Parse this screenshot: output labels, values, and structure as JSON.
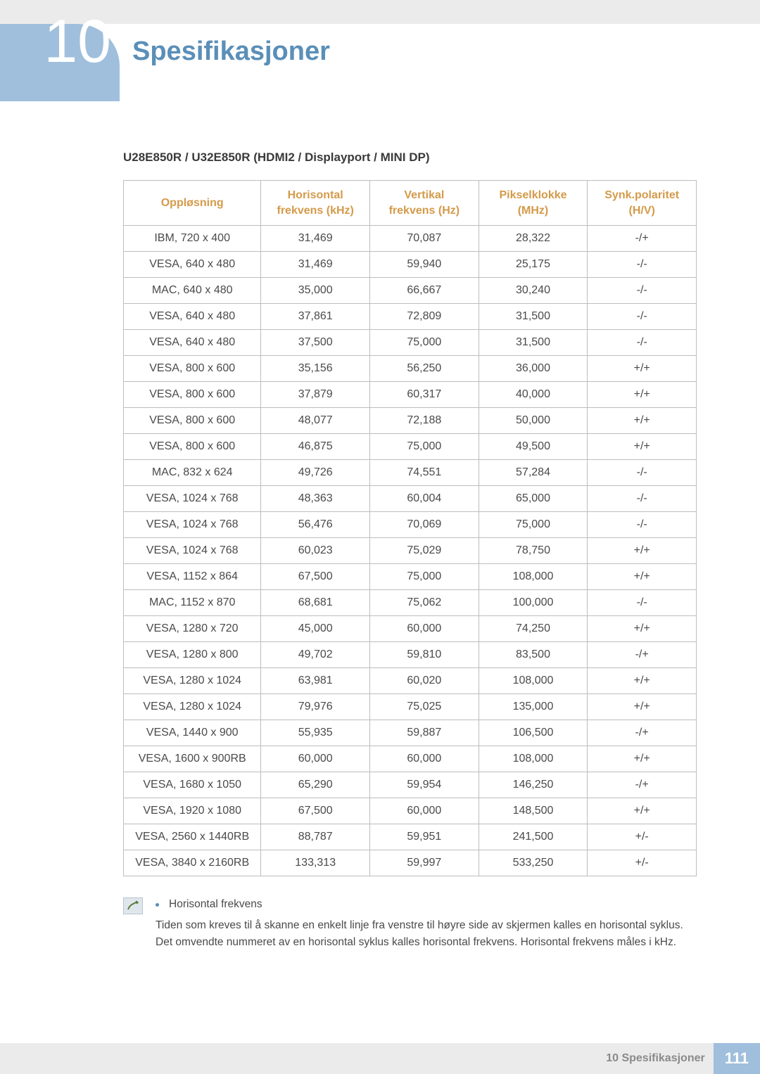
{
  "chapter": {
    "number": "10",
    "title": "Spesifikasjoner"
  },
  "section_heading": "U28E850R / U32E850R (HDMI2 / Displayport / MINI DP)",
  "table": {
    "columns": [
      {
        "line1": "Oppløsning",
        "line2": ""
      },
      {
        "line1": "Horisontal",
        "line2": "frekvens (kHz)"
      },
      {
        "line1": "Vertikal",
        "line2": "frekvens (Hz)"
      },
      {
        "line1": "Pikselklokke",
        "line2": "(MHz)"
      },
      {
        "line1": "Synk.polaritet",
        "line2": "(H/V)"
      }
    ],
    "rows": [
      [
        "IBM, 720 x 400",
        "31,469",
        "70,087",
        "28,322",
        "-/+"
      ],
      [
        "VESA, 640 x 480",
        "31,469",
        "59,940",
        "25,175",
        "-/-"
      ],
      [
        "MAC, 640 x 480",
        "35,000",
        "66,667",
        "30,240",
        "-/-"
      ],
      [
        "VESA, 640 x 480",
        "37,861",
        "72,809",
        "31,500",
        "-/-"
      ],
      [
        "VESA, 640 x 480",
        "37,500",
        "75,000",
        "31,500",
        "-/-"
      ],
      [
        "VESA, 800 x 600",
        "35,156",
        "56,250",
        "36,000",
        "+/+"
      ],
      [
        "VESA, 800 x 600",
        "37,879",
        "60,317",
        "40,000",
        "+/+"
      ],
      [
        "VESA, 800 x 600",
        "48,077",
        "72,188",
        "50,000",
        "+/+"
      ],
      [
        "VESA, 800 x 600",
        "46,875",
        "75,000",
        "49,500",
        "+/+"
      ],
      [
        "MAC, 832 x 624",
        "49,726",
        "74,551",
        "57,284",
        "-/-"
      ],
      [
        "VESA, 1024 x 768",
        "48,363",
        "60,004",
        "65,000",
        "-/-"
      ],
      [
        "VESA, 1024 x 768",
        "56,476",
        "70,069",
        "75,000",
        "-/-"
      ],
      [
        "VESA, 1024 x 768",
        "60,023",
        "75,029",
        "78,750",
        "+/+"
      ],
      [
        "VESA, 1152 x 864",
        "67,500",
        "75,000",
        "108,000",
        "+/+"
      ],
      [
        "MAC, 1152 x 870",
        "68,681",
        "75,062",
        "100,000",
        "-/-"
      ],
      [
        "VESA, 1280 x 720",
        "45,000",
        "60,000",
        "74,250",
        "+/+"
      ],
      [
        "VESA, 1280 x 800",
        "49,702",
        "59,810",
        "83,500",
        "-/+"
      ],
      [
        "VESA, 1280 x 1024",
        "63,981",
        "60,020",
        "108,000",
        "+/+"
      ],
      [
        "VESA, 1280 x 1024",
        "79,976",
        "75,025",
        "135,000",
        "+/+"
      ],
      [
        "VESA, 1440 x 900",
        "55,935",
        "59,887",
        "106,500",
        "-/+"
      ],
      [
        "VESA, 1600 x 900RB",
        "60,000",
        "60,000",
        "108,000",
        "+/+"
      ],
      [
        "VESA, 1680 x 1050",
        "65,290",
        "59,954",
        "146,250",
        "-/+"
      ],
      [
        "VESA, 1920 x 1080",
        "67,500",
        "60,000",
        "148,500",
        "+/+"
      ],
      [
        "VESA, 2560 x 1440RB",
        "88,787",
        "59,951",
        "241,500",
        "+/-"
      ],
      [
        "VESA, 3840 x 2160RB",
        "133,313",
        "59,997",
        "533,250",
        "+/-"
      ]
    ]
  },
  "note": {
    "title": "Horisontal frekvens",
    "body": "Tiden som kreves til å skanne en enkelt linje fra venstre til høyre side av skjermen kalles en horisontal syklus. Det omvendte nummeret av en horisontal syklus kalles horisontal frekvens. Horisontal frekvens måles i kHz."
  },
  "footer": {
    "label": "10 Spesifikasjoner",
    "page": "111"
  },
  "colors": {
    "accent_blue": "#9fbfdc",
    "title_blue": "#5a8fb8",
    "header_orange": "#d49a4a",
    "grey_bar": "#ebebeb",
    "border": "#bdbdbd",
    "text": "#4a4a4a"
  }
}
